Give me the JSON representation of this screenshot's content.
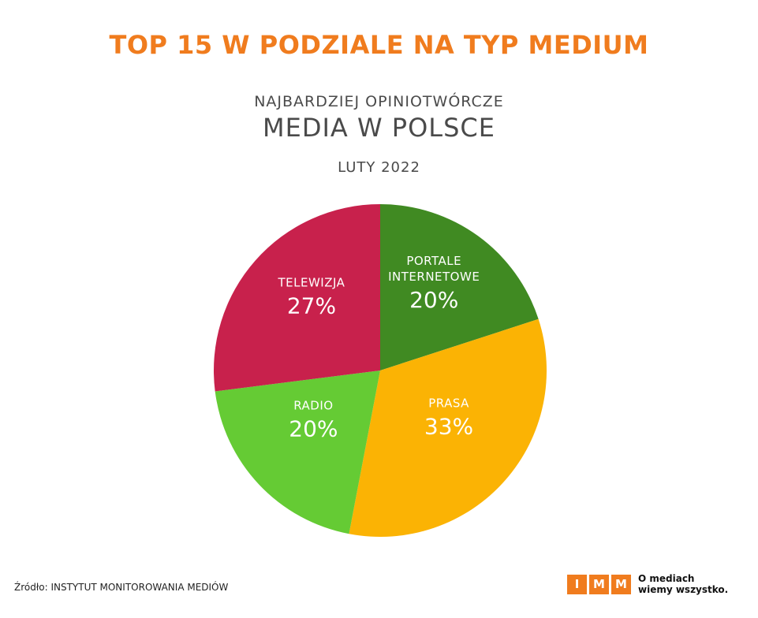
{
  "header": {
    "title": "TOP 15 W PODZIALE NA TYP MEDIUM",
    "subtitle_line1": "NAJBARDZIEJ OPINIOTWÓRCZE",
    "subtitle_line2": "MEDIA W POLSCE",
    "date": "LUTY 2022"
  },
  "colors": {
    "title": "#f07c1e",
    "accent": "#f07c1e",
    "text_dark": "#4a4a4a"
  },
  "chart_data": {
    "type": "pie",
    "start_angle_deg": 0,
    "direction": "clockwise",
    "slices": [
      {
        "label": [
          "PORTALE",
          "INTERNETOWE"
        ],
        "value": 20,
        "display": "20%",
        "color": "#408a22"
      },
      {
        "label": [
          "PRASA"
        ],
        "value": 33,
        "display": "33%",
        "color": "#fbb304"
      },
      {
        "label": [
          "RADIO"
        ],
        "value": 20,
        "display": "20%",
        "color": "#65cb34"
      },
      {
        "label": [
          "TELEWIZJA"
        ],
        "value": 27,
        "display": "27%",
        "color": "#c8214c"
      }
    ]
  },
  "footer": {
    "source": "Źródło: INSTYTUT MONITOROWANIA MEDIÓW",
    "logo_letters": [
      "I",
      "M",
      "M"
    ],
    "logo_tagline_line1": "O mediach",
    "logo_tagline_line2": "wiemy wszystko."
  }
}
